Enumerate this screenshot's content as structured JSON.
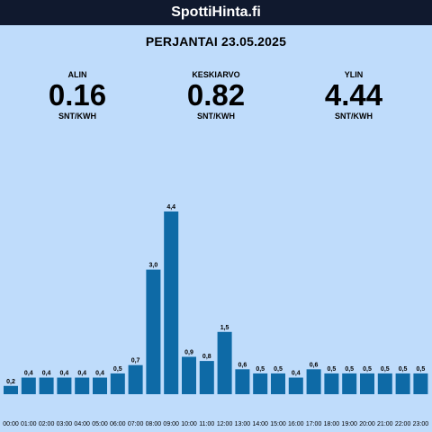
{
  "header": {
    "title": "SpottiHinta.fi"
  },
  "date_label": "PERJANTAI 23.05.2025",
  "stats": [
    {
      "label": "ALIN",
      "value": "0.16",
      "unit": "SNT/KWH"
    },
    {
      "label": "KESKIARVO",
      "value": "0.82",
      "unit": "SNT/KWH"
    },
    {
      "label": "YLIN",
      "value": "4.44",
      "unit": "SNT/KWH"
    }
  ],
  "colors": {
    "bar": "#0e6aa6",
    "background": "#bfdcfb",
    "header": "#10192e"
  },
  "chart_data": {
    "type": "bar",
    "title": "",
    "xlabel": "",
    "ylabel": "",
    "categories": [
      "00:00",
      "01:00",
      "02:00",
      "03:00",
      "04:00",
      "05:00",
      "06:00",
      "07:00",
      "08:00",
      "09:00",
      "10:00",
      "11:00",
      "12:00",
      "13:00",
      "14:00",
      "15:00",
      "16:00",
      "17:00",
      "18:00",
      "19:00",
      "20:00",
      "21:00",
      "22:00",
      "23:00"
    ],
    "values": [
      0.2,
      0.4,
      0.4,
      0.4,
      0.4,
      0.4,
      0.5,
      0.7,
      3.0,
      4.4,
      0.9,
      0.8,
      1.5,
      0.6,
      0.5,
      0.5,
      0.4,
      0.6,
      0.5,
      0.5,
      0.5,
      0.5,
      0.5,
      0.5
    ],
    "value_labels": [
      "0,2",
      "0,4",
      "0,4",
      "0,4",
      "0,4",
      "0,4",
      "0,5",
      "0,7",
      "3,0",
      "4,4",
      "0,9",
      "0,8",
      "1,5",
      "0,6",
      "0,5",
      "0,5",
      "0,4",
      "0,6",
      "0,5",
      "0,5",
      "0,5",
      "0,5",
      "0,5",
      "0,5"
    ],
    "ylim": [
      0,
      4.4
    ],
    "grid": false,
    "legend": "none"
  }
}
